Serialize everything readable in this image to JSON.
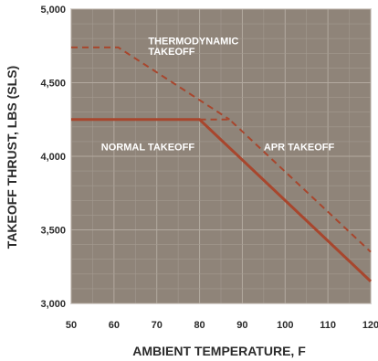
{
  "chart_data": {
    "type": "line",
    "xlabel": "AMBIENT TEMPERATURE, F",
    "ylabel": "TAKEOFF THRUST, LBS (SLS)",
    "xlim": [
      50,
      120
    ],
    "ylim": [
      3000,
      5000
    ],
    "x_ticks": [
      "50",
      "60",
      "70",
      "80",
      "90",
      "100",
      "110",
      "120"
    ],
    "y_ticks": [
      "3,000",
      "3,500",
      "4,000",
      "4,500",
      "5,000"
    ],
    "x_tick_values": [
      50,
      60,
      70,
      80,
      90,
      100,
      110,
      120
    ],
    "y_tick_values": [
      3000,
      3500,
      4000,
      4500,
      5000
    ],
    "grid": true,
    "background_color": "#8f8479",
    "line_color": "#a8462d",
    "series": [
      {
        "name": "NORMAL TAKEOFF",
        "style": "solid",
        "x": [
          50,
          80,
          120
        ],
        "y": [
          4250,
          4250,
          3150
        ]
      },
      {
        "name": "APR TAKEOFF",
        "style": "dashed",
        "x": [
          80,
          87,
          120
        ],
        "y": [
          4250,
          4250,
          3350
        ]
      },
      {
        "name": "THERMODYNAMIC TAKEOFF",
        "style": "dashed",
        "x": [
          50,
          61,
          87
        ],
        "y": [
          4740,
          4740,
          4250
        ]
      }
    ],
    "annotations": [
      {
        "text": "THERMODYNAMIC",
        "x": 68,
        "y": 4760
      },
      {
        "text": "TAKEOFF",
        "x": 68,
        "y": 4690
      },
      {
        "text": "NORMAL TAKEOFF",
        "x": 57,
        "y": 4040
      },
      {
        "text": "APR TAKEOFF",
        "x": 95,
        "y": 4040
      }
    ]
  }
}
